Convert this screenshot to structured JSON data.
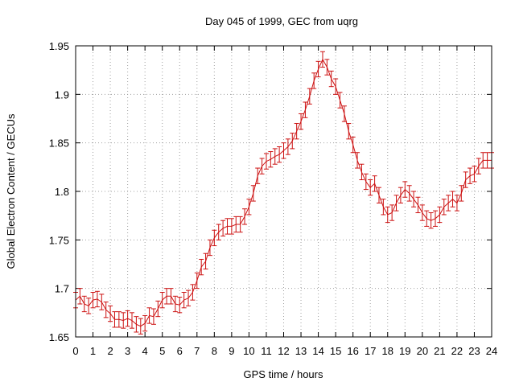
{
  "chart_data": {
    "type": "line",
    "title": "Day 045 of 1999, GEC from uqrg",
    "xlabel": "GPS time / hours",
    "ylabel": "Global Electron Content / GECUs",
    "xlim": [
      0,
      24
    ],
    "ylim": [
      1.65,
      1.95
    ],
    "xticks": [
      "0",
      "1",
      "2",
      "3",
      "4",
      "5",
      "6",
      "7",
      "8",
      "9",
      "10",
      "11",
      "12",
      "13",
      "14",
      "15",
      "16",
      "17",
      "18",
      "19",
      "20",
      "21",
      "22",
      "23",
      "24"
    ],
    "yticks": [
      "1.65",
      "1.7",
      "1.75",
      "1.8",
      "1.85",
      "1.9",
      "1.95"
    ],
    "grid": true,
    "legend": "none",
    "series_color": "#cc1111",
    "series": [
      {
        "name": "GEC",
        "error": 0.008,
        "x": [
          0,
          0.25,
          0.5,
          0.75,
          1,
          1.25,
          1.5,
          1.75,
          2,
          2.25,
          2.5,
          2.75,
          3,
          3.25,
          3.5,
          3.75,
          4,
          4.25,
          4.5,
          4.75,
          5,
          5.25,
          5.5,
          5.75,
          6,
          6.25,
          6.5,
          6.75,
          7,
          7.25,
          7.5,
          7.75,
          8,
          8.25,
          8.5,
          8.75,
          9,
          9.25,
          9.5,
          9.75,
          10,
          10.25,
          10.5,
          10.75,
          11,
          11.25,
          11.5,
          11.75,
          12,
          12.25,
          12.5,
          12.75,
          13,
          13.25,
          13.5,
          13.75,
          14,
          14.25,
          14.5,
          14.75,
          15,
          15.25,
          15.5,
          15.75,
          16,
          16.25,
          16.5,
          16.75,
          17,
          17.25,
          17.5,
          17.75,
          18,
          18.25,
          18.5,
          18.75,
          19,
          19.25,
          19.5,
          19.75,
          20,
          20.25,
          20.5,
          20.75,
          21,
          21.25,
          21.5,
          21.75,
          22,
          22.25,
          22.5,
          22.75,
          23,
          23.25,
          23.5,
          23.75,
          24
        ],
        "values": [
          1.688,
          1.692,
          1.684,
          1.682,
          1.688,
          1.689,
          1.686,
          1.678,
          1.674,
          1.668,
          1.668,
          1.667,
          1.669,
          1.667,
          1.663,
          1.661,
          1.664,
          1.672,
          1.671,
          1.679,
          1.688,
          1.692,
          1.692,
          1.684,
          1.683,
          1.688,
          1.69,
          1.696,
          1.708,
          1.722,
          1.728,
          1.742,
          1.752,
          1.758,
          1.762,
          1.764,
          1.764,
          1.766,
          1.766,
          1.774,
          1.784,
          1.798,
          1.816,
          1.826,
          1.831,
          1.833,
          1.836,
          1.838,
          1.842,
          1.846,
          1.852,
          1.862,
          1.872,
          1.884,
          1.898,
          1.914,
          1.926,
          1.936,
          1.928,
          1.916,
          1.908,
          1.894,
          1.88,
          1.862,
          1.848,
          1.832,
          1.82,
          1.81,
          1.804,
          1.808,
          1.796,
          1.784,
          1.776,
          1.778,
          1.788,
          1.796,
          1.802,
          1.798,
          1.792,
          1.786,
          1.778,
          1.772,
          1.77,
          1.772,
          1.776,
          1.784,
          1.788,
          1.792,
          1.788,
          1.798,
          1.812,
          1.816,
          1.818,
          1.826,
          1.832,
          1.832,
          1.832
        ]
      }
    ]
  }
}
